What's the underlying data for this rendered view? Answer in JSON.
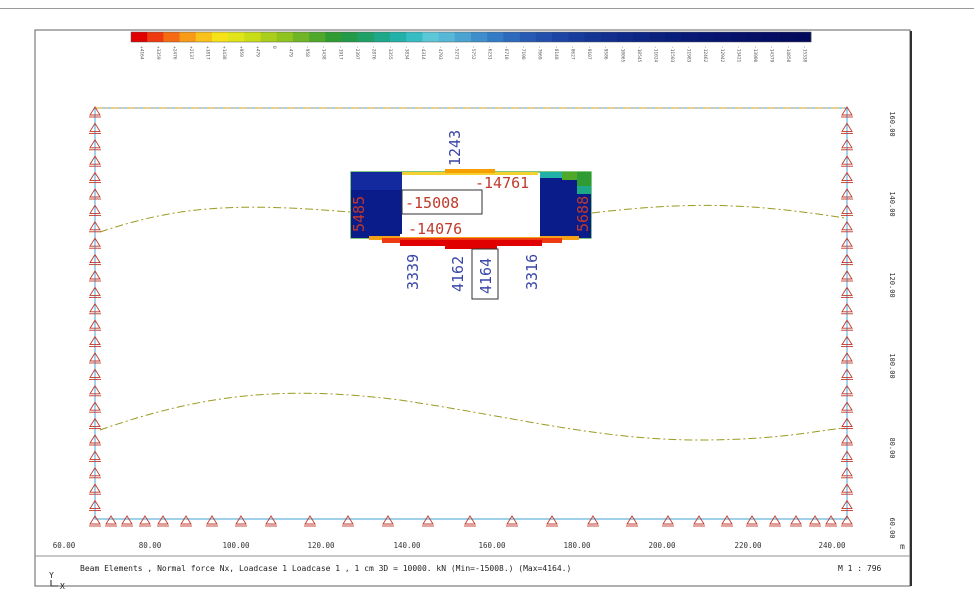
{
  "legend": {
    "colors": [
      "#e00000",
      "#ee3a10",
      "#f56a12",
      "#f79a16",
      "#f9c21a",
      "#f6e317",
      "#e1e419",
      "#c9dc18",
      "#a9cf1c",
      "#8fc31d",
      "#6fb525",
      "#4fa82a",
      "#2f9b33",
      "#229a49",
      "#1fa066",
      "#1da889",
      "#22b1a8",
      "#36bdc4",
      "#5bc7d7",
      "#56b7d6",
      "#4aa3d0",
      "#3e8ecb",
      "#347bc5",
      "#2d6abc",
      "#275bb3",
      "#224fab",
      "#1d45a3",
      "#183c9c",
      "#153595",
      "#122f8e",
      "#0f2a89",
      "#0d2583",
      "#0b217e",
      "#091d7a",
      "#081a75",
      "#071771",
      "#06146d",
      "#051169",
      "#050f66",
      "#040d63",
      "#030b5f",
      "#030a5c"
    ],
    "labels": [
      "+4164",
      "+3359",
      "+2476",
      "+2137",
      "+1817",
      "+1438",
      "+959",
      "+479",
      "0",
      "-479",
      "-958",
      "-1438",
      "-1917",
      "-2397",
      "-2876",
      "-3355",
      "-3834",
      "-4314",
      "-4793",
      "-5272",
      "-5752",
      "-6231",
      "-6710",
      "-7190",
      "-7669",
      "-8148",
      "-8627",
      "-9107",
      "-9586",
      "-10065",
      "-10545",
      "-11024",
      "-11503",
      "-11983",
      "-12462",
      "-12942",
      "-13421",
      "-13900",
      "-14379",
      "-14858",
      "-15338"
    ]
  },
  "axes": {
    "x_ticks": [
      "60.00",
      "80.00",
      "100.00",
      "120.00",
      "140.00",
      "160.00",
      "180.00",
      "200.00",
      "220.00",
      "240.00"
    ],
    "x_unit": "m",
    "y_ticks": [
      "160.00",
      "140.00",
      "120.00",
      "100.00",
      "80.00",
      "60.00"
    ]
  },
  "annotations": {
    "top": "1243",
    "top_right": "-14761",
    "mid_box": "-15008",
    "bottom_left": "-14076",
    "left_side": "5485",
    "right_side": "5688",
    "v1": "3339",
    "v2": "4162",
    "v3_box": "4164",
    "v4": "3316"
  },
  "footer": {
    "caption": "Beam Elements , Normal force Nx, Loadcase 1  Loadcase 1   , 1 cm 3D =  10000. kN (Min=-15008.) (Max=4164.)",
    "scale": "M 1 : 796",
    "axis_y": "Y",
    "axis_x": "X"
  },
  "colors": {
    "outline": "#4aa3d8",
    "support": "#c0392b",
    "ground_line": "#d4a020",
    "text_red": "#c0392b",
    "text_blue": "#3a46a8"
  }
}
